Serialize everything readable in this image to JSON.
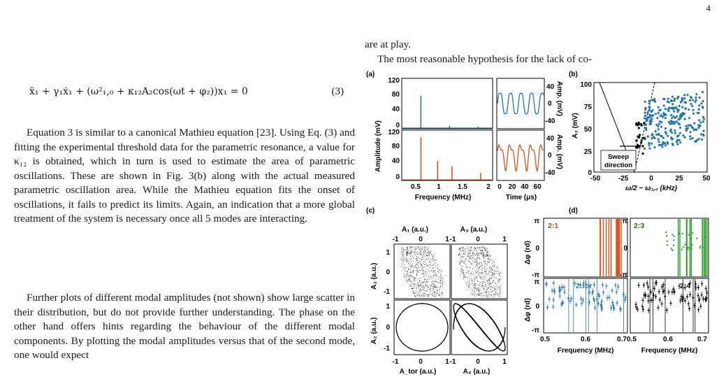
{
  "page_number": "4",
  "equation": {
    "formula": "ẍ₁ + γ₁ẋ₁ + (ω²₁,₀ + κ₁₂A₂cos(ωt + φ₂))x₁ = 0",
    "number": "(3)"
  },
  "left_column": {
    "para1": "Equation 3 is similar to a canonical Mathieu equation [23]. Using Eq. (3) and fitting the experimental threshold data for the parametric resonance, a value for κ₁₂ is obtained, which in turn is used to estimate the area of parametric oscillations. These are shown in Fig. 3(b) along with the actual measured parametric oscillation area. While the Mathieu equation fits the onset of oscillations, it fails to predict its limits. Again, an indication that a more global treatment of the system is necessary once all 5 modes are interacting.",
    "para2": "Further plots of different modal amplitudes (not shown) show large scatter in their distribution, but do not provide further understanding. The phase on the other hand offers hints regarding the behaviour of the different modal components. By plotting the modal amplitudes versus that of the second mode, one would expect"
  },
  "right_column": {
    "line1": "are at play.",
    "line2": "The most reasonable hypothesis for the lack of co-"
  },
  "figure": {
    "panel_labels": {
      "a": "(a)",
      "b": "(b)",
      "c": "(c)",
      "d": "(d)"
    },
    "a": {
      "ylabel": "Amplitude (mV)",
      "xlabel_freq": "Frequency (MHz)",
      "xlabel_time": "Time (μs)",
      "ylabel_right": "Amp. (mV)",
      "y_ticks": [
        "120",
        "80",
        "40",
        "0"
      ],
      "x_ticks_freq": [
        "0.5",
        "1",
        "1.5",
        "2"
      ],
      "x_ticks_time": [
        "0",
        "20",
        "40",
        "60"
      ],
      "y_ticks_right": [
        "40",
        "0",
        "-40"
      ],
      "top_peaks": [
        {
          "f": 0.6,
          "amp": 85
        },
        {
          "f": 1.2,
          "amp": 6
        },
        {
          "f": 1.8,
          "amp": 4
        }
      ],
      "bottom_peaks": [
        {
          "f": 0.6,
          "amp": 112
        },
        {
          "f": 0.95,
          "amp": 50
        },
        {
          "f": 1.25,
          "amp": 35
        },
        {
          "f": 1.85,
          "amp": 18
        }
      ]
    },
    "b": {
      "ylabel": "A₂ (mV)",
      "xlabel": "ω/2 − ω₁,₀ (kHz)",
      "x_ticks": [
        "-50",
        "-25",
        "0",
        "25",
        "50"
      ],
      "y_ticks": [
        "100",
        "75",
        "50",
        "25",
        "0"
      ],
      "annotation": "Sweep direction",
      "annotation_line1": "Sweep",
      "annotation_line2": "direction"
    },
    "c": {
      "xlabel_top_left": "A₁ (a.u.)",
      "xlabel_top_right": "A₃ (a.u.)",
      "xlabel_bottom_left": "A_tor (a.u.)",
      "xlabel_bottom_right": "A₄ (a.u.)",
      "ylabel": "A₂ (a.u.)",
      "ticks": [
        "-1",
        "0",
        "1"
      ]
    },
    "d": {
      "ylabel": "Δφ (rd)",
      "xlabel": "Frequency (MHz)",
      "x_ticks": [
        "0.5",
        "0.6",
        "0.7"
      ],
      "y_ticks": [
        "π",
        "0",
        "-π"
      ],
      "labels": [
        "2:1",
        "2:3",
        "2:tor",
        "2:4"
      ]
    },
    "colors": {
      "blue": "#1f77b4",
      "orange": "#d95319",
      "green": "#2ca02c",
      "black": "#000000"
    }
  }
}
